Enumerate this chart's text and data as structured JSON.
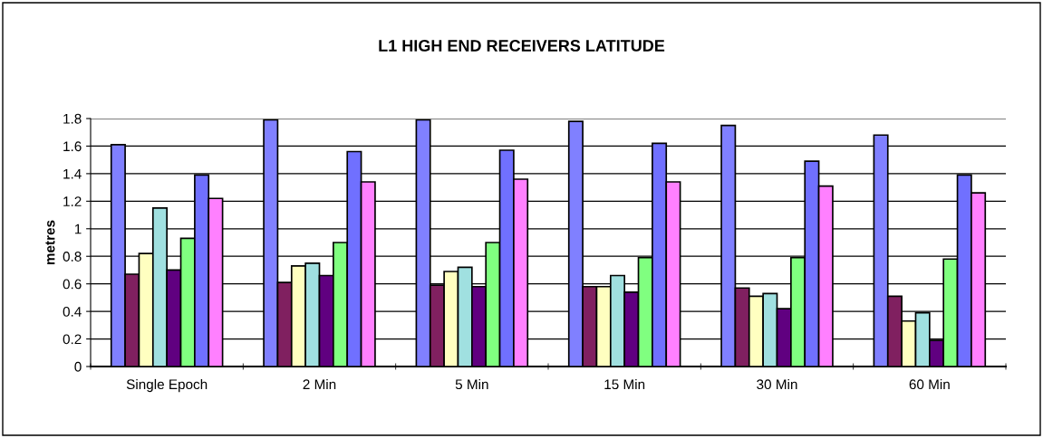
{
  "chart_data": {
    "type": "bar",
    "title": "L1 HIGH END RECEIVERS LATITUDE",
    "ylabel": "metres",
    "categories": [
      "Single Epoch",
      "2 Min",
      "5 Min",
      "15 Min",
      "30 Min",
      "60 Min"
    ],
    "series": [
      {
        "color": "#8080ff",
        "values": [
          1.61,
          1.79,
          1.79,
          1.78,
          1.75,
          1.68
        ]
      },
      {
        "color": "#802060",
        "values": [
          0.67,
          0.61,
          0.59,
          0.58,
          0.57,
          0.51
        ]
      },
      {
        "color": "#ffffc0",
        "values": [
          0.82,
          0.73,
          0.69,
          0.58,
          0.51,
          0.33
        ]
      },
      {
        "color": "#a0e0e0",
        "values": [
          1.15,
          0.75,
          0.72,
          0.66,
          0.53,
          0.39
        ]
      },
      {
        "color": "#600080",
        "values": [
          0.7,
          0.66,
          0.58,
          0.54,
          0.42,
          0.19
        ]
      },
      {
        "color": "#80ff80",
        "values": [
          0.93,
          0.9,
          0.9,
          0.79,
          0.79,
          0.78
        ]
      },
      {
        "color": "#7070ff",
        "values": [
          1.39,
          1.56,
          1.57,
          1.62,
          1.49,
          1.39
        ]
      },
      {
        "color": "#ff80ff",
        "values": [
          1.22,
          1.34,
          1.36,
          1.34,
          1.31,
          1.26
        ]
      }
    ],
    "ylim": [
      0,
      1.8
    ],
    "yticks": [
      0,
      0.2,
      0.4,
      0.6,
      0.8,
      1,
      1.2,
      1.4,
      1.6,
      1.8
    ],
    "grid": "y",
    "legend": false
  }
}
